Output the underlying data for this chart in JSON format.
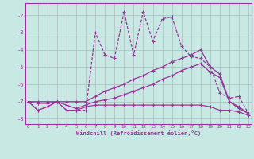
{
  "x": [
    0,
    1,
    2,
    3,
    4,
    5,
    6,
    7,
    8,
    9,
    10,
    11,
    12,
    13,
    14,
    15,
    16,
    17,
    18,
    19,
    20,
    21,
    22,
    23
  ],
  "line_dotted": [
    -7.0,
    -7.5,
    -7.3,
    -7.0,
    -7.5,
    -7.5,
    -7.5,
    -3.0,
    -4.3,
    -4.5,
    -1.8,
    -4.3,
    -1.8,
    -3.5,
    -2.2,
    -2.1,
    -3.8,
    -4.4,
    -4.5,
    -5.0,
    -6.5,
    -6.8,
    -6.7,
    -7.7
  ],
  "line_solid_high": [
    -7.0,
    -7.0,
    -7.0,
    -7.0,
    -7.0,
    -7.0,
    -7.0,
    -6.7,
    -6.4,
    -6.2,
    -6.0,
    -5.7,
    -5.5,
    -5.2,
    -5.0,
    -4.7,
    -4.5,
    -4.3,
    -4.0,
    -5.0,
    -5.4,
    -7.0,
    -7.3,
    -7.7
  ],
  "line_solid_mid": [
    -7.0,
    -7.1,
    -7.1,
    -7.0,
    -7.2,
    -7.4,
    -7.2,
    -7.0,
    -6.9,
    -6.8,
    -6.6,
    -6.4,
    -6.2,
    -6.0,
    -5.7,
    -5.5,
    -5.2,
    -5.0,
    -4.8,
    -5.3,
    -5.6,
    -7.0,
    -7.4,
    -7.7
  ],
  "line_solid_low": [
    -7.0,
    -7.5,
    -7.3,
    -7.0,
    -7.5,
    -7.5,
    -7.3,
    -7.2,
    -7.2,
    -7.2,
    -7.2,
    -7.2,
    -7.2,
    -7.2,
    -7.2,
    -7.2,
    -7.2,
    -7.2,
    -7.2,
    -7.3,
    -7.5,
    -7.5,
    -7.6,
    -7.8
  ],
  "bg_color": "#c8e8e4",
  "line_color": "#993399",
  "grid_color": "#aabbbb",
  "xlabel": "Windchill (Refroidissement éolien,°C)",
  "yticks": [
    -8,
    -7,
    -6,
    -5,
    -4,
    -3,
    -2
  ],
  "xticks": [
    0,
    1,
    2,
    3,
    4,
    5,
    6,
    7,
    8,
    9,
    10,
    11,
    12,
    13,
    14,
    15,
    16,
    17,
    18,
    19,
    20,
    21,
    22,
    23
  ],
  "ylim": [
    -8.3,
    -1.3
  ],
  "xlim": [
    -0.3,
    23.3
  ]
}
